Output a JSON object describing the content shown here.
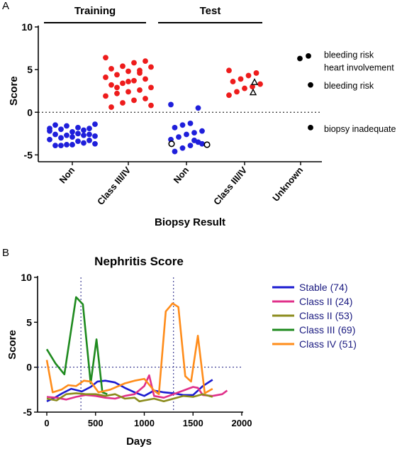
{
  "panel_a_label": "A",
  "panel_b_label": "B",
  "chart_data": [
    {
      "type": "scatter",
      "title": "",
      "ylabel": "Score",
      "xlabel": "Biopsy Result",
      "ylim": [
        -5.8,
        10
      ],
      "yticks": [
        "10",
        "5",
        "0",
        "-5"
      ],
      "reference_line": 0,
      "groups": [
        {
          "header": "Training",
          "columns": [
            0,
            1
          ]
        },
        {
          "header": "Test",
          "columns": [
            2,
            3
          ]
        }
      ],
      "categories": [
        "Non",
        "Class III/IV",
        "Non",
        "Class III/IV",
        "Unknown"
      ],
      "colors": {
        "non": "#1f1fdb",
        "class": "#ee1c1c",
        "other": "#000000"
      },
      "series": [
        {
          "category": 0,
          "color": "non",
          "marker": "circle",
          "values": [
            -1.9,
            -1.9,
            -1.8,
            -1.6,
            -1.5,
            -1.4,
            -2.1,
            -2.3,
            -2.0,
            -2.2,
            -2.6,
            -2.5,
            -2.7,
            -2.6,
            -2.8,
            -2.7,
            -2.9,
            -3.0,
            -3.2,
            -3.3,
            -3.4,
            -3.8,
            -3.9,
            -3.7,
            -3.6,
            -3.8,
            -3.9
          ]
        },
        {
          "category": 1,
          "color": "class",
          "marker": "circle",
          "values": [
            6.4,
            6.0,
            5.8,
            5.4,
            5.1,
            5.3,
            4.6,
            4.8,
            4.4,
            4.1,
            3.9,
            3.7,
            3.4,
            3.2,
            2.9,
            2.6,
            2.4,
            2.2,
            1.9,
            1.6,
            1.4,
            1.1,
            0.6,
            0.8,
            4.9,
            3.6,
            2.9
          ]
        },
        {
          "category": 2,
          "color": "non",
          "marker": "circle",
          "values": [
            0.9,
            0.5,
            -1.3,
            -1.5,
            -1.8,
            -2.2,
            -2.4,
            -2.6,
            -2.9,
            -3.2,
            -3.5,
            -3.9,
            -4.2,
            -4.6,
            -3.7,
            -3.3
          ]
        },
        {
          "category": 2,
          "color": "other",
          "marker": "open-circle",
          "values": [
            -3.7,
            -3.8
          ]
        },
        {
          "category": 3,
          "color": "class",
          "marker": "circle",
          "values": [
            4.9,
            4.6,
            4.3,
            3.9,
            3.6,
            3.3,
            3.0,
            2.8,
            2.4,
            2.0
          ]
        },
        {
          "category": 3,
          "color": "other",
          "marker": "open-triangle",
          "values": [
            3.5,
            2.3
          ]
        },
        {
          "category": 4,
          "color": "other",
          "marker": "circle",
          "values": [
            6.6,
            6.3,
            3.2,
            -1.8
          ]
        }
      ],
      "annotations": [
        "bleeding risk",
        "heart involvement",
        "bleeding risk",
        "biopsy inadequate"
      ]
    },
    {
      "type": "line",
      "title": "Nephritis Score",
      "xlabel": "Days",
      "ylabel": "Score",
      "xlim": [
        0,
        2000
      ],
      "ylim": [
        -5,
        10
      ],
      "xticks": [
        "0",
        "500",
        "1000",
        "1500",
        "2000"
      ],
      "yticks": [
        "10",
        "5",
        "0",
        "-5"
      ],
      "vertical_refs": [
        350,
        1300
      ],
      "reference_line": 0,
      "legend_position": "right",
      "series": [
        {
          "name": "Stable (74)",
          "color": "#1a1ad0",
          "x": [
            0,
            80,
            160,
            250,
            360,
            450,
            520,
            600,
            700,
            800,
            900,
            1000,
            1100,
            1200,
            1300,
            1400,
            1500,
            1600,
            1700
          ],
          "y": [
            -3.8,
            -3.4,
            -2.9,
            -2.4,
            -2.7,
            -2.2,
            -1.6,
            -1.5,
            -1.7,
            -2.3,
            -2.8,
            -3.2,
            -2.6,
            -2.8,
            -2.9,
            -3.1,
            -3.1,
            -2.1,
            -1.4
          ]
        },
        {
          "name": "Class II (24)",
          "color": "#e0308a",
          "x": [
            0,
            100,
            200,
            300,
            400,
            500,
            600,
            700,
            800,
            900,
            1000,
            1050,
            1100,
            1200,
            1300,
            1400,
            1500,
            1550,
            1600,
            1700,
            1800,
            1850
          ],
          "y": [
            -3.3,
            -3.4,
            -3.6,
            -3.3,
            -3.1,
            -3.2,
            -3.4,
            -3.5,
            -3.2,
            -3.0,
            -2.1,
            -0.9,
            -3.2,
            -3.4,
            -3.0,
            -2.6,
            -2.2,
            -2.3,
            -3.1,
            -3.2,
            -3.0,
            -2.6
          ]
        },
        {
          "name": "Class II (53)",
          "color": "#8b8b1c",
          "x": [
            0,
            100,
            200,
            300,
            400,
            500,
            600,
            700,
            800,
            900,
            950,
            1000,
            1100,
            1200,
            1300,
            1400,
            1500,
            1600,
            1700
          ],
          "y": [
            -3.5,
            -3.7,
            -3.0,
            -2.9,
            -3.0,
            -3.0,
            -3.2,
            -3.0,
            -3.5,
            -3.4,
            -3.8,
            -3.7,
            -3.5,
            -3.8,
            -3.5,
            -3.2,
            -3.3,
            -3.0,
            -3.3
          ]
        },
        {
          "name": "Class III (69)",
          "color": "#1e8a1e",
          "x": [
            0,
            90,
            180,
            300,
            370,
            450,
            510,
            570,
            620
          ],
          "y": [
            2.0,
            0.4,
            -0.8,
            7.8,
            7.0,
            -1.8,
            3.1,
            -2.8,
            -3.0
          ]
        },
        {
          "name": "Class IV (51)",
          "color": "#ff8c1a",
          "x": [
            0,
            60,
            150,
            220,
            300,
            380,
            450,
            530,
            650,
            800,
            900,
            1000,
            1100,
            1150,
            1220,
            1290,
            1350,
            1420,
            1480,
            1550,
            1620,
            1700
          ],
          "y": [
            0.8,
            -2.8,
            -2.5,
            -2.0,
            -2.1,
            -1.5,
            -1.6,
            -2.8,
            -2.5,
            -1.8,
            -1.5,
            -1.3,
            -2.6,
            -3.0,
            6.2,
            7.1,
            6.7,
            -1.0,
            -1.6,
            3.5,
            -2.9,
            -2.4
          ]
        }
      ]
    }
  ]
}
